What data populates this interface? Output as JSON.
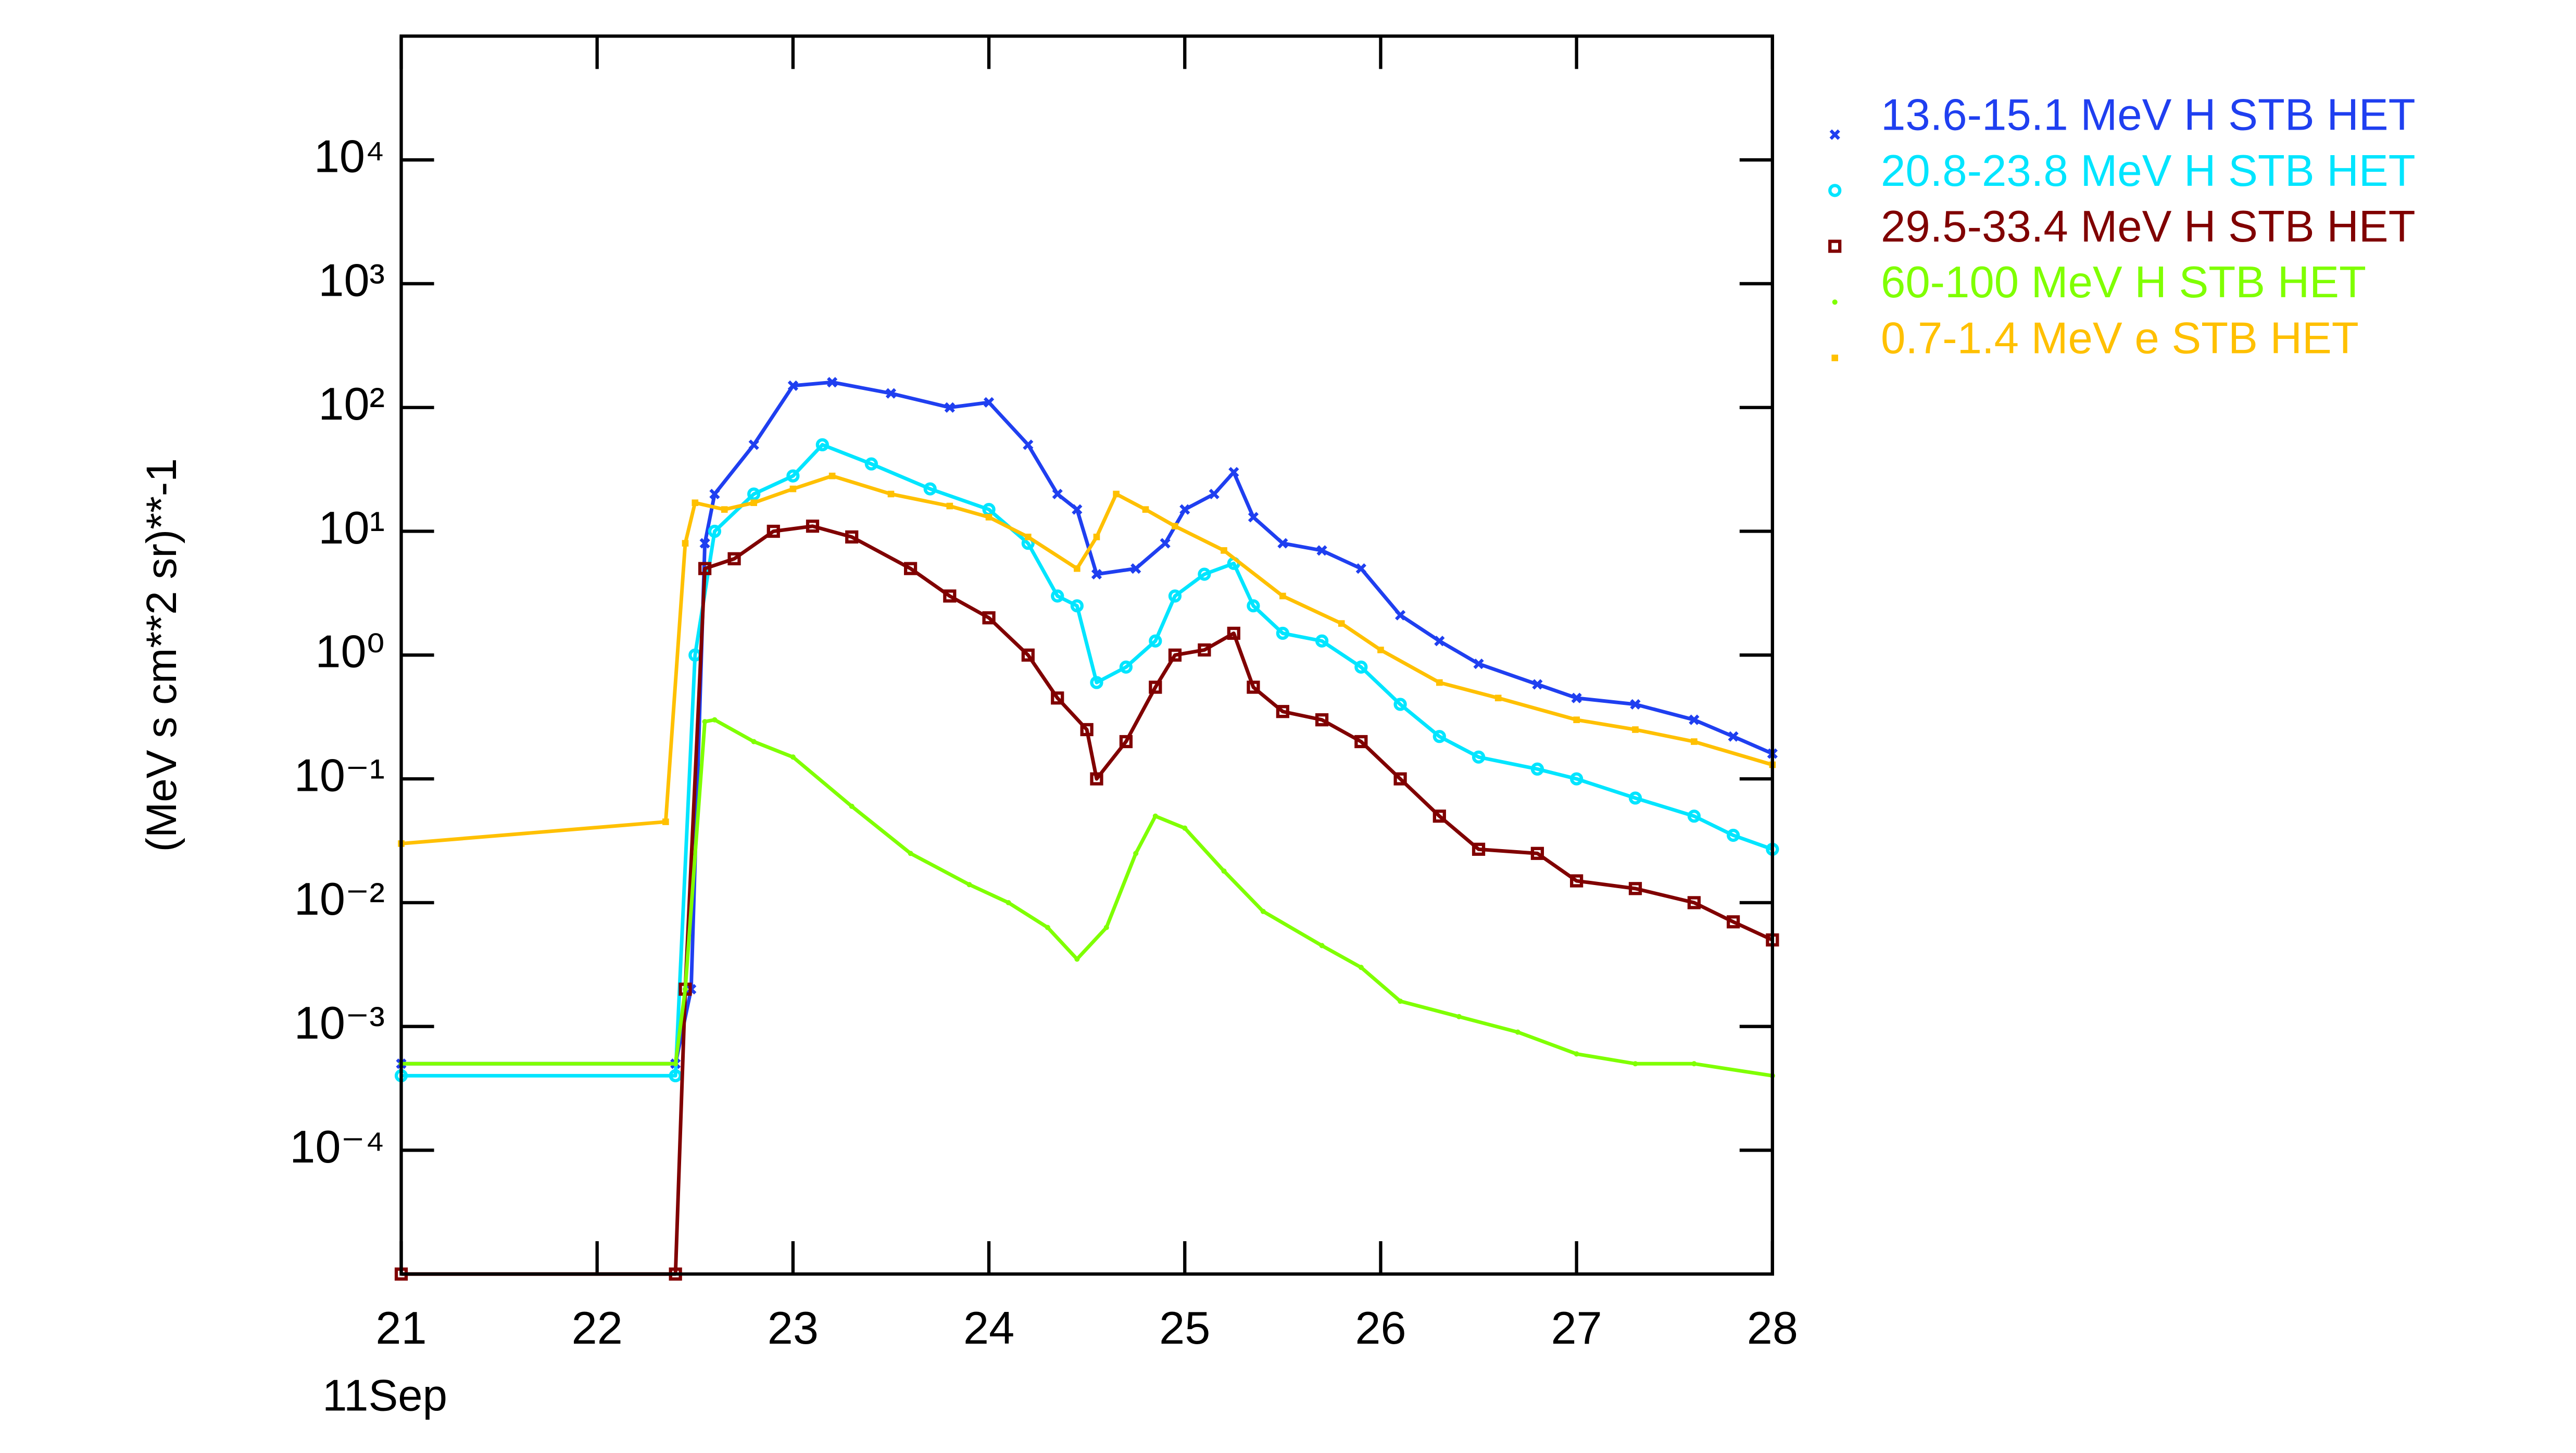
{
  "chart_data": {
    "type": "line",
    "ylabel": "(MeV s cm**2 sr)**-1",
    "x_start_label": "11Sep",
    "xlim": [
      21,
      28
    ],
    "xticks": [
      21,
      22,
      23,
      24,
      25,
      26,
      27,
      28
    ],
    "ylim": [
      1e-05,
      100000
    ],
    "log_y": true,
    "yticks": [
      {
        "value": 0.0001,
        "label": "10⁻⁴"
      },
      {
        "value": 0.001,
        "label": "10⁻³"
      },
      {
        "value": 0.01,
        "label": "10⁻²"
      },
      {
        "value": 0.1,
        "label": "10⁻¹"
      },
      {
        "value": 1,
        "label": "10⁰"
      },
      {
        "value": 10,
        "label": "10¹"
      },
      {
        "value": 100,
        "label": "10²"
      },
      {
        "value": 1000,
        "label": "10³"
      },
      {
        "value": 10000,
        "label": "10⁴"
      }
    ],
    "legend": "outside-right",
    "series": [
      {
        "name": "13.6-15.1 MeV H STB HET",
        "color": "#1f3ff0",
        "x": [
          21,
          22.4,
          22.48,
          22.55,
          22.6,
          22.8,
          23.0,
          23.2,
          23.5,
          23.8,
          24.0,
          24.2,
          24.35,
          24.45,
          24.55,
          24.75,
          24.9,
          25.0,
          25.15,
          25.25,
          25.35,
          25.5,
          25.7,
          25.9,
          26.1,
          26.3,
          26.5,
          26.8,
          27.0,
          27.3,
          27.6,
          27.8,
          28
        ],
        "values": [
          0.0005,
          0.0005,
          0.002,
          8,
          20,
          50,
          150,
          160,
          130,
          100,
          110,
          50,
          20,
          15,
          4.5,
          5,
          8,
          15,
          20,
          30,
          13,
          8,
          7,
          5,
          2.1,
          1.3,
          0.85,
          0.58,
          0.45,
          0.4,
          0.3,
          0.22,
          0.16
        ]
      },
      {
        "name": "20.8-23.8 MeV H STB HET",
        "color": "#00e5ff",
        "x": [
          21,
          22.4,
          22.5,
          22.6,
          22.8,
          23.0,
          23.15,
          23.4,
          23.7,
          24.0,
          24.2,
          24.35,
          24.45,
          24.55,
          24.7,
          24.85,
          24.95,
          25.1,
          25.25,
          25.35,
          25.5,
          25.7,
          25.9,
          26.1,
          26.3,
          26.5,
          26.8,
          27.0,
          27.3,
          27.6,
          27.8,
          28
        ],
        "values": [
          0.0004,
          0.0004,
          1,
          10,
          20,
          28,
          50,
          35,
          22,
          15,
          8,
          3,
          2.5,
          0.6,
          0.8,
          1.3,
          3,
          4.5,
          5.5,
          2.5,
          1.5,
          1.3,
          0.8,
          0.4,
          0.22,
          0.15,
          0.12,
          0.1,
          0.07,
          0.05,
          0.035,
          0.027
        ]
      },
      {
        "name": "29.5-33.4 MeV H STB HET",
        "color": "#800000",
        "x": [
          21,
          22.4,
          22.45,
          22.55,
          22.7,
          22.9,
          23.1,
          23.3,
          23.6,
          23.8,
          24.0,
          24.2,
          24.35,
          24.5,
          24.55,
          24.7,
          24.85,
          24.95,
          25.1,
          25.25,
          25.35,
          25.5,
          25.7,
          25.9,
          26.1,
          26.3,
          26.5,
          26.8,
          27.0,
          27.3,
          27.6,
          27.8,
          28
        ],
        "values": [
          1e-05,
          1e-05,
          0.002,
          5,
          6,
          10,
          11,
          9,
          5,
          3,
          2,
          1,
          0.45,
          0.25,
          0.1,
          0.2,
          0.55,
          1,
          1.1,
          1.5,
          0.55,
          0.35,
          0.3,
          0.2,
          0.1,
          0.05,
          0.027,
          0.025,
          0.015,
          0.013,
          0.01,
          0.007,
          0.005
        ]
      },
      {
        "name": "60-100 MeV H STB HET",
        "color": "#7fff00",
        "x": [
          21,
          22.4,
          22.45,
          22.55,
          22.6,
          22.8,
          23.0,
          23.3,
          23.6,
          23.9,
          24.1,
          24.3,
          24.45,
          24.6,
          24.75,
          24.85,
          25.0,
          25.2,
          25.4,
          25.7,
          25.9,
          26.1,
          26.4,
          26.7,
          27.0,
          27.3,
          27.6,
          28
        ],
        "values": [
          0.0005,
          0.0005,
          0.002,
          0.29,
          0.3,
          0.2,
          0.15,
          0.06,
          0.025,
          0.014,
          0.01,
          0.0063,
          0.0035,
          0.0063,
          0.025,
          0.05,
          0.04,
          0.018,
          0.0085,
          0.0045,
          0.003,
          0.0016,
          0.0012,
          0.0009,
          0.0006,
          0.0005,
          0.0005,
          0.0004
        ]
      },
      {
        "name": "0.7-1.4 MeV e STB HET",
        "color": "#ffc000",
        "x": [
          21,
          22.35,
          22.45,
          22.5,
          22.65,
          22.8,
          23.0,
          23.2,
          23.5,
          23.8,
          24.0,
          24.2,
          24.45,
          24.55,
          24.65,
          24.8,
          24.95,
          25.2,
          25.5,
          25.8,
          26.0,
          26.3,
          26.6,
          27.0,
          27.3,
          27.6,
          28
        ],
        "values": [
          0.03,
          0.045,
          8,
          17,
          15,
          17,
          22,
          28,
          20,
          16,
          13,
          9,
          5,
          9,
          20,
          15,
          11,
          7,
          3,
          1.8,
          1.1,
          0.6,
          0.45,
          0.3,
          0.25,
          0.2,
          0.13
        ]
      }
    ]
  }
}
